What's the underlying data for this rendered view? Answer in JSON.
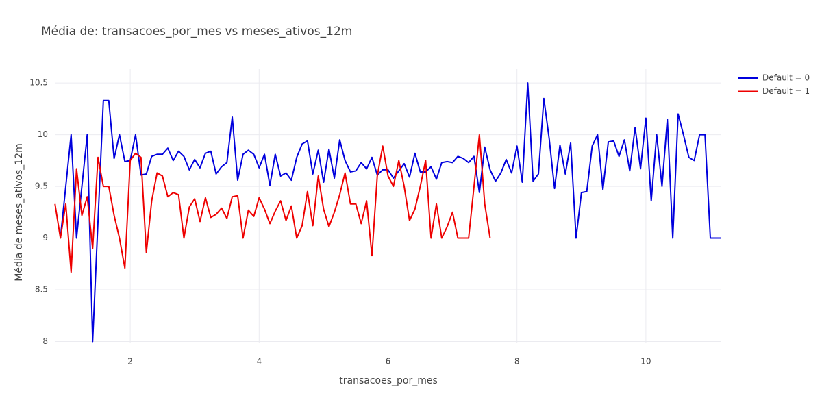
{
  "chart_data": {
    "type": "line",
    "title": "Média de: transacoes_por_mes vs meses_ativos_12m",
    "x_label": "transacoes_por_mes",
    "y_label": "Média de meses_ativos_12m",
    "xlim": [
      0.83,
      11.17
    ],
    "ylim": [
      7.99,
      10.64
    ],
    "xticks": [
      2,
      4,
      6,
      8,
      10
    ],
    "yticks": [
      8,
      8.5,
      9,
      9.5,
      10,
      10.5
    ],
    "grid": true,
    "legend": "top-right-outside",
    "series": [
      {
        "name": "Default = 0",
        "color": "#0000dd",
        "x": [
          0.917,
          1.083,
          1.167,
          1.333,
          1.417,
          1.583,
          1.667,
          1.75,
          1.833,
          1.917,
          2,
          2.083,
          2.167,
          2.25,
          2.333,
          2.417,
          2.5,
          2.583,
          2.667,
          2.75,
          2.833,
          2.917,
          3,
          3.083,
          3.167,
          3.25,
          3.333,
          3.417,
          3.5,
          3.583,
          3.667,
          3.75,
          3.833,
          3.917,
          4,
          4.083,
          4.167,
          4.25,
          4.333,
          4.417,
          4.5,
          4.583,
          4.667,
          4.75,
          4.833,
          4.917,
          5,
          5.083,
          5.167,
          5.25,
          5.333,
          5.417,
          5.5,
          5.583,
          5.667,
          5.75,
          5.833,
          5.917,
          6,
          6.083,
          6.167,
          6.25,
          6.333,
          6.417,
          6.5,
          6.583,
          6.667,
          6.75,
          6.833,
          6.917,
          7,
          7.083,
          7.167,
          7.25,
          7.333,
          7.417,
          7.5,
          7.583,
          7.667,
          7.75,
          7.833,
          7.917,
          8,
          8.083,
          8.167,
          8.25,
          8.333,
          8.417,
          8.5,
          8.583,
          8.667,
          8.75,
          8.833,
          8.917,
          9,
          9.083,
          9.167,
          9.25,
          9.333,
          9.417,
          9.5,
          9.583,
          9.667,
          9.75,
          9.833,
          9.917,
          10,
          10.083,
          10.167,
          10.25,
          10.333,
          10.417,
          10.5,
          10.583,
          10.667,
          10.75,
          10.833,
          10.917,
          11,
          11.083,
          11.167
        ],
        "values": [
          9.0,
          10.0,
          9.0,
          10.0,
          8.0,
          10.33,
          10.33,
          9.77,
          10.0,
          9.74,
          9.75,
          10.0,
          9.61,
          9.62,
          9.79,
          9.81,
          9.81,
          9.87,
          9.75,
          9.84,
          9.79,
          9.66,
          9.76,
          9.68,
          9.82,
          9.84,
          9.62,
          9.69,
          9.73,
          10.17,
          9.56,
          9.81,
          9.85,
          9.81,
          9.68,
          9.81,
          9.51,
          9.81,
          9.6,
          9.63,
          9.56,
          9.78,
          9.91,
          9.94,
          9.62,
          9.85,
          9.54,
          9.86,
          9.58,
          9.95,
          9.75,
          9.64,
          9.65,
          9.73,
          9.67,
          9.78,
          9.61,
          9.66,
          9.66,
          9.58,
          9.65,
          9.72,
          9.59,
          9.82,
          9.64,
          9.64,
          9.69,
          9.57,
          9.73,
          9.74,
          9.73,
          9.79,
          9.77,
          9.73,
          9.79,
          9.44,
          9.88,
          9.66,
          9.55,
          9.63,
          9.76,
          9.63,
          9.89,
          9.54,
          10.5,
          9.55,
          9.62,
          10.35,
          9.96,
          9.48,
          9.9,
          9.62,
          9.92,
          9.0,
          9.44,
          9.45,
          9.89,
          10.0,
          9.47,
          9.93,
          9.94,
          9.79,
          9.95,
          9.65,
          10.07,
          9.67,
          10.16,
          9.36,
          10.0,
          9.5,
          10.15,
          9.0,
          10.2,
          10.0,
          9.78,
          9.75,
          10.0,
          10.0,
          9.0,
          9.0,
          9.0
        ]
      },
      {
        "name": "Default = 1",
        "color": "#ee0000",
        "x": [
          0.833,
          0.917,
          1,
          1.083,
          1.167,
          1.25,
          1.333,
          1.417,
          1.5,
          1.583,
          1.667,
          1.75,
          1.833,
          1.917,
          2,
          2.083,
          2.167,
          2.25,
          2.333,
          2.417,
          2.5,
          2.583,
          2.667,
          2.75,
          2.833,
          2.917,
          3,
          3.083,
          3.167,
          3.25,
          3.333,
          3.417,
          3.5,
          3.583,
          3.667,
          3.75,
          3.833,
          3.917,
          4,
          4.083,
          4.167,
          4.25,
          4.333,
          4.417,
          4.5,
          4.583,
          4.667,
          4.75,
          4.833,
          4.917,
          5,
          5.083,
          5.167,
          5.25,
          5.333,
          5.417,
          5.5,
          5.583,
          5.667,
          5.75,
          5.833,
          5.917,
          6,
          6.083,
          6.167,
          6.25,
          6.333,
          6.417,
          6.5,
          6.583,
          6.667,
          6.75,
          6.833,
          6.917,
          7,
          7.083,
          7.167,
          7.25,
          7.417,
          7.5,
          7.583
        ],
        "values": [
          9.33,
          9.0,
          9.33,
          8.67,
          9.67,
          9.22,
          9.4,
          8.9,
          9.78,
          9.5,
          9.5,
          9.22,
          9.0,
          8.71,
          9.75,
          9.82,
          9.78,
          8.86,
          9.36,
          9.63,
          9.6,
          9.4,
          9.44,
          9.42,
          9.0,
          9.3,
          9.38,
          9.16,
          9.39,
          9.2,
          9.23,
          9.29,
          9.19,
          9.4,
          9.41,
          9.0,
          9.27,
          9.21,
          9.39,
          9.28,
          9.14,
          9.26,
          9.36,
          9.17,
          9.31,
          9.0,
          9.12,
          9.45,
          9.12,
          9.6,
          9.28,
          9.11,
          9.25,
          9.42,
          9.63,
          9.33,
          9.33,
          9.14,
          9.36,
          8.83,
          9.6,
          9.89,
          9.6,
          9.5,
          9.75,
          9.5,
          9.17,
          9.28,
          9.5,
          9.75,
          9.0,
          9.33,
          9.0,
          9.11,
          9.25,
          9.0,
          9.0,
          9.0,
          10.0,
          9.33,
          9.0
        ]
      }
    ]
  }
}
